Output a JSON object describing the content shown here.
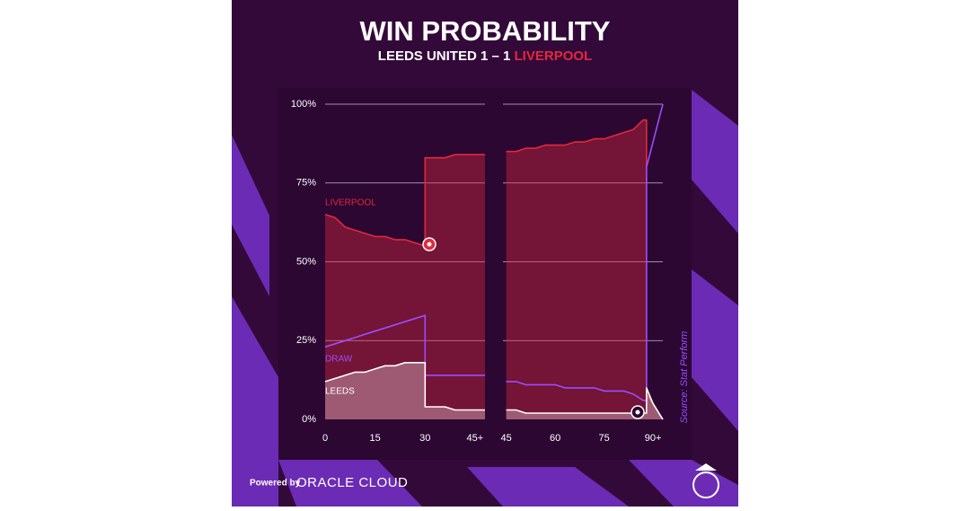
{
  "header": {
    "title": "WIN PROBABILITY",
    "subtitle_home": "LEEDS UNITED 1 – 1",
    "subtitle_away": "LIVERPOOL"
  },
  "source": "Source: Stat Perform",
  "footer": {
    "powered_by": "Powered by",
    "brand": "ORACLE CLOUD"
  },
  "chart_data": [
    {
      "type": "line",
      "xlim": [
        0,
        48
      ],
      "xticks": [
        0,
        15,
        30,
        {
          "value": 45,
          "label": "45+"
        }
      ],
      "ylim": [
        0,
        100
      ],
      "yticks": [
        {
          "value": 0,
          "label": "0%"
        },
        {
          "value": 25,
          "label": "25%"
        },
        {
          "value": 50,
          "label": "50%"
        },
        {
          "value": 75,
          "label": "75%"
        },
        {
          "value": 100,
          "label": "100%"
        }
      ],
      "grid": true,
      "x": [
        0,
        3,
        6,
        9,
        12,
        15,
        18,
        21,
        24,
        27,
        30,
        30,
        33,
        36,
        39,
        42,
        45,
        48
      ],
      "series": [
        {
          "name": "LIVERPOOL",
          "color": "#e3283c",
          "fill": true,
          "values": [
            65,
            64,
            61,
            60,
            59,
            58,
            58,
            57,
            57,
            56,
            55,
            83,
            83,
            83,
            84,
            84,
            84,
            84
          ]
        },
        {
          "name": "DRAW",
          "color": "#9b4dff",
          "fill": false,
          "values": [
            23,
            24,
            25,
            26,
            27,
            28,
            29,
            30,
            31,
            32,
            33,
            14,
            14,
            14,
            14,
            14,
            14,
            14
          ]
        },
        {
          "name": "LEEDS",
          "color": "#ffffff",
          "fill": true,
          "values": [
            12,
            13,
            14,
            15,
            15,
            16,
            17,
            17,
            18,
            18,
            18,
            4,
            4,
            4,
            3,
            3,
            3,
            3
          ]
        }
      ]
    },
    {
      "type": "line",
      "xlim": [
        44,
        93
      ],
      "xticks": [
        45,
        60,
        75,
        {
          "value": 90,
          "label": "90+"
        }
      ],
      "ylim": [
        0,
        100
      ],
      "yticks": [
        0,
        25,
        50,
        75,
        100
      ],
      "grid": true,
      "x": [
        45,
        48,
        51,
        54,
        57,
        60,
        63,
        66,
        69,
        72,
        75,
        78,
        81,
        84,
        87,
        88,
        88,
        90,
        93
      ],
      "series": [
        {
          "color": "#e3283c",
          "fill": true,
          "values": [
            85,
            85,
            86,
            86,
            87,
            87,
            87,
            88,
            88,
            89,
            89,
            90,
            91,
            92,
            95,
            95,
            8,
            5,
            0
          ]
        },
        {
          "color": "#9b4dff",
          "fill": false,
          "values": [
            12,
            12,
            11,
            11,
            11,
            11,
            10,
            10,
            10,
            10,
            9,
            9,
            9,
            8,
            6,
            6,
            80,
            88,
            100
          ]
        },
        {
          "color": "#ffffff",
          "fill": true,
          "values": [
            3,
            3,
            2,
            2,
            2,
            2,
            2,
            2,
            2,
            2,
            2,
            2,
            2,
            2,
            2,
            2,
            10,
            5,
            0
          ]
        }
      ]
    }
  ]
}
